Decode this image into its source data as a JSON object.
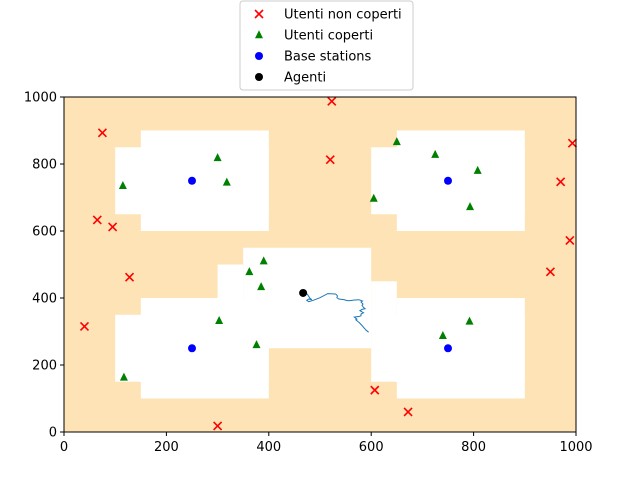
{
  "chart_data": {
    "type": "scatter",
    "title": "",
    "xlabel": "",
    "ylabel": "",
    "xlim": [
      0,
      1000
    ],
    "ylim": [
      0,
      1000
    ],
    "x_ticks": [
      0,
      200,
      400,
      600,
      800,
      1000
    ],
    "y_ticks": [
      0,
      200,
      400,
      600,
      800,
      1000
    ],
    "grid": false,
    "legend": "top-center",
    "background_color": "#fde3b5",
    "coverage_color": "#ffffff",
    "coverage_blocks": [
      [
        150,
        600,
        400,
        900
      ],
      [
        100,
        650,
        400,
        850
      ],
      [
        650,
        600,
        900,
        900
      ],
      [
        600,
        650,
        900,
        850
      ],
      [
        150,
        100,
        400,
        400
      ],
      [
        100,
        150,
        400,
        350
      ],
      [
        650,
        100,
        900,
        400
      ],
      [
        600,
        150,
        900,
        350
      ],
      [
        350,
        250,
        600,
        550
      ],
      [
        300,
        250,
        350,
        500
      ],
      [
        600,
        300,
        650,
        450
      ]
    ],
    "series": [
      {
        "name": "Utenti non coperti",
        "marker": "x",
        "color": "#ff0000",
        "x": [
          75,
          95,
          65,
          128,
          40,
          523,
          520,
          300,
          607,
          672,
          993,
          970,
          988,
          950
        ],
        "y": [
          893,
          612,
          633,
          462,
          315,
          987,
          813,
          18,
          125,
          60,
          862,
          747,
          572,
          478
        ]
      },
      {
        "name": "Utenti coperti",
        "marker": "triangle",
        "color": "#008000",
        "x": [
          300,
          318,
          115,
          117,
          390,
          362,
          385,
          303,
          376,
          650,
          725,
          808,
          793,
          605,
          740,
          792
        ],
        "y": [
          818,
          745,
          735,
          163,
          510,
          478,
          433,
          332,
          260,
          866,
          828,
          780,
          672,
          697,
          287,
          330
        ]
      },
      {
        "name": "Base stations",
        "marker": "circle",
        "color": "#0000ff",
        "x": [
          250,
          750,
          250,
          750
        ],
        "y": [
          750,
          750,
          250,
          250
        ]
      },
      {
        "name": "Agenti",
        "marker": "circle",
        "color": "#000000",
        "x": [
          467
        ],
        "y": [
          415
        ]
      }
    ],
    "trajectory": {
      "color": "#1f77b4",
      "x": [
        467,
        475,
        480,
        484,
        478,
        474,
        478,
        487,
        500,
        515,
        530,
        532,
        534,
        533,
        537,
        548,
        550,
        556,
        568,
        576,
        583,
        580,
        584,
        582,
        585,
        588,
        582,
        578,
        585,
        580,
        580,
        577,
        567,
        572,
        570,
        573,
        577,
        582,
        586,
        590,
        595
      ],
      "y": [
        418,
        412,
        400,
        395,
        397,
        393,
        389,
        393,
        401,
        413,
        412,
        410,
        406,
        401,
        397,
        395,
        393,
        392,
        394,
        395,
        391,
        388,
        382,
        378,
        372,
        368,
        366,
        362,
        356,
        352,
        347,
        345,
        343,
        337,
        335,
        331,
        326,
        318,
        311,
        304,
        298
      ]
    }
  }
}
